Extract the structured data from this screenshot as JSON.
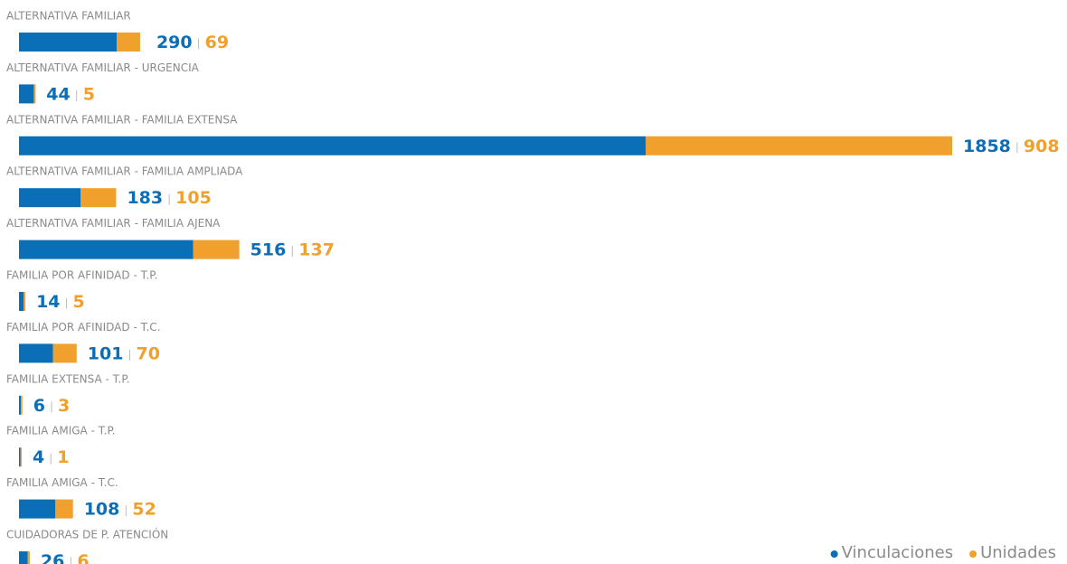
{
  "chart_data": {
    "type": "bar",
    "orientation": "horizontal",
    "stacked": true,
    "categories": [
      "ALTERNATIVA FAMILIAR",
      "ALTERNATIVA FAMILIAR - URGENCIA",
      "ALTERNATIVA FAMILIAR - FAMILIA EXTENSA",
      "ALTERNATIVA FAMILIAR - FAMILIA AMPLIADA",
      "ALTERNATIVA FAMILIAR - FAMILIA AJENA",
      "FAMILIA POR AFINIDAD - T.P.",
      "FAMILIA POR AFINIDAD - T.C.",
      "FAMILIA EXTENSA - T.P.",
      "FAMILIA AMIGA - T.P.",
      "FAMILIA AMIGA - T.C.",
      "CUIDADORAS DE P. ATENCIÓN"
    ],
    "series": [
      {
        "name": "Vinculaciones",
        "color": "#0a6fb7",
        "values": [
          290,
          44,
          1858,
          183,
          516,
          14,
          101,
          6,
          4,
          108,
          26
        ]
      },
      {
        "name": "Unidades",
        "color": "#f0a02c",
        "values": [
          69,
          5,
          908,
          105,
          137,
          5,
          70,
          3,
          1,
          52,
          6
        ]
      }
    ],
    "legend": "bottom-right"
  }
}
